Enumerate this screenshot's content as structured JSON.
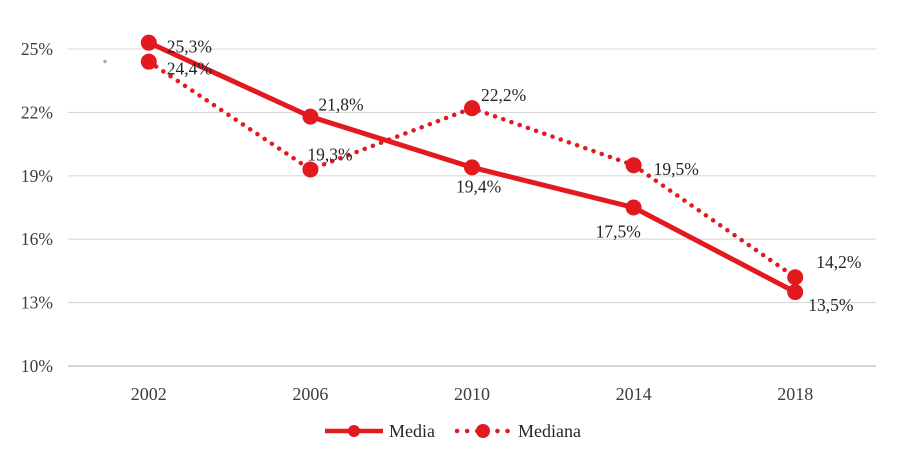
{
  "chart_data": {
    "type": "line",
    "title": "",
    "xlabel": "",
    "ylabel": "",
    "categories": [
      "2002",
      "2006",
      "2010",
      "2014",
      "2018"
    ],
    "series": [
      {
        "name": "Media",
        "line_style": "solid",
        "values": [
          25.3,
          21.8,
          19.4,
          17.5,
          13.5
        ],
        "point_labels": [
          "25,3%",
          "21,8%",
          "19,4%",
          "17,5%",
          "13,5%"
        ]
      },
      {
        "name": "Mediana",
        "line_style": "dotted",
        "values": [
          24.4,
          19.3,
          22.2,
          19.5,
          14.2
        ],
        "point_labels": [
          "24,4%",
          "19,3%",
          "22,2%",
          "19,5%",
          "14,2%"
        ]
      }
    ],
    "y_ticks": [
      {
        "value": 10,
        "label": "10%"
      },
      {
        "value": 13,
        "label": "13%"
      },
      {
        "value": 16,
        "label": "16%"
      },
      {
        "value": 19,
        "label": "19%"
      },
      {
        "value": 22,
        "label": "22%"
      },
      {
        "value": 25,
        "label": "25%"
      }
    ],
    "ylim": [
      10,
      25
    ],
    "grid": "horizontal-only",
    "legend_position": "bottom-center",
    "colors": {
      "series_red": "#e2191f",
      "gridline": "#d9d9d9",
      "axis_line": "#c9c9c9",
      "tick_text": "#3d3d3d",
      "data_label_text": "#262626"
    }
  }
}
